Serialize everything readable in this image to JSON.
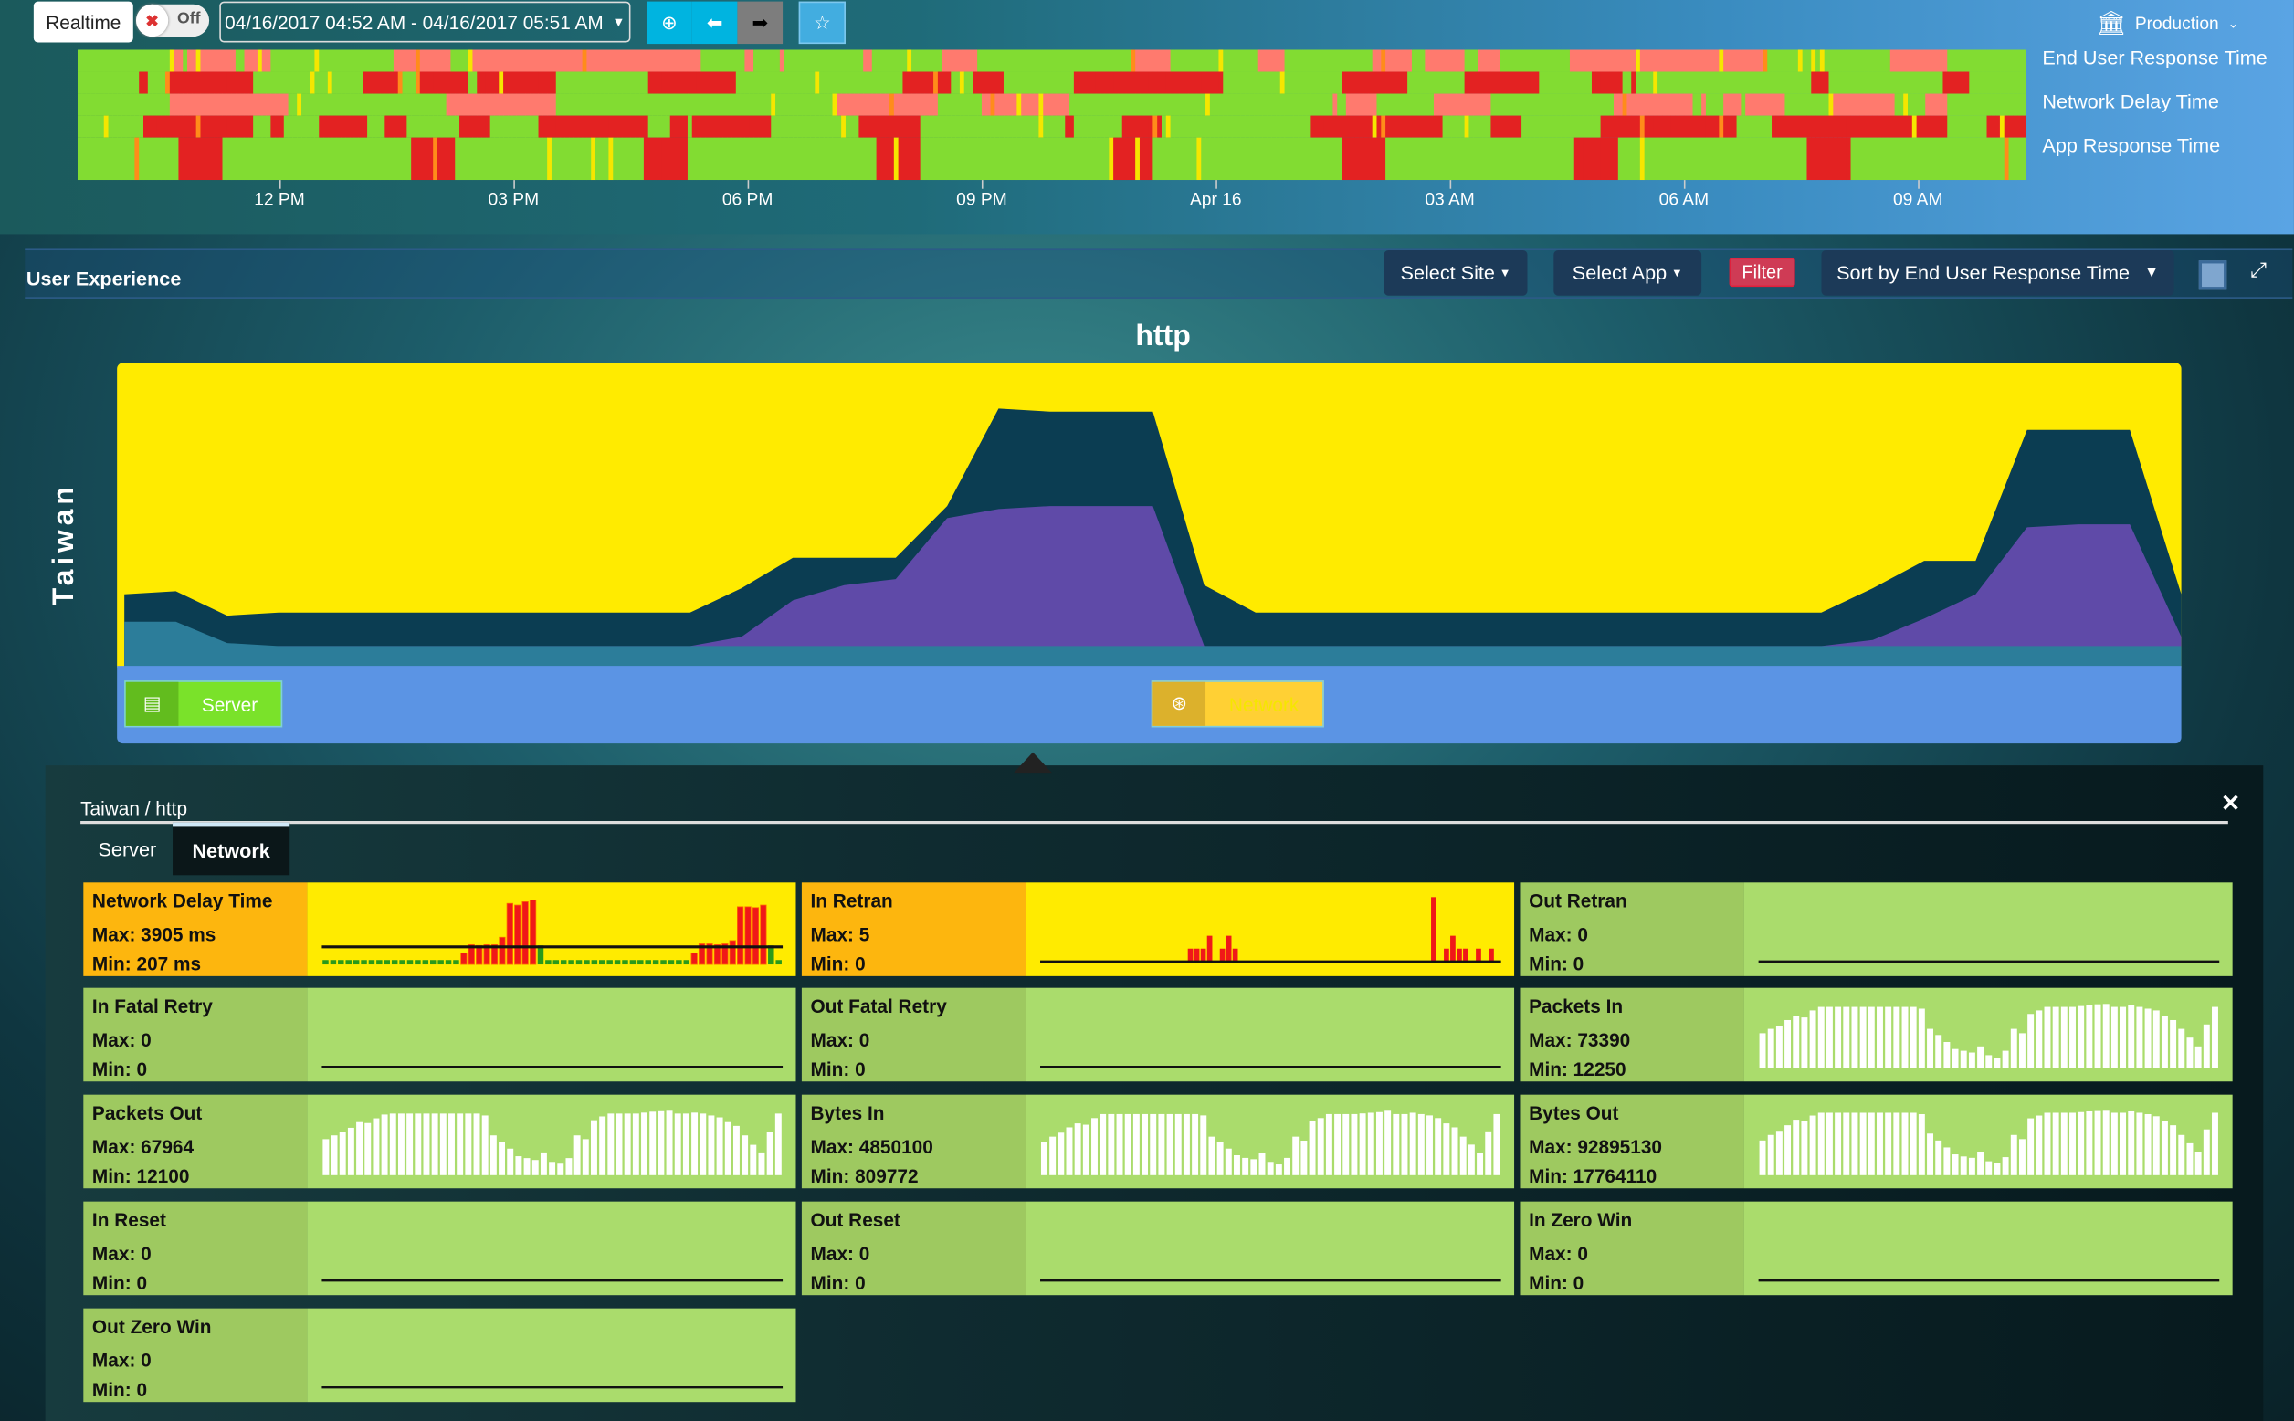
{
  "toolbar": {
    "realtime_label": "Realtime",
    "toggle_state": "Off",
    "time_range": "04/16/2017 04:52 AM - 04/16/2017 05:51 AM"
  },
  "timeline": {
    "ticks": [
      "12 PM",
      "03 PM",
      "06 PM",
      "09 PM",
      "Apr 16",
      "03 AM",
      "06 AM",
      "09 AM"
    ],
    "rows": [
      "End User Response Time",
      "Network Delay Time",
      "App Response Time"
    ],
    "colors": {
      "good": "#82dc32",
      "warn": "#f5e600",
      "minor": "#ff7a6e",
      "critical": "#e32222",
      "orange": "#ff8c1a"
    }
  },
  "environment": {
    "label": "Production"
  },
  "user_experience": {
    "title": "User Experience",
    "select_site": "Select Site",
    "select_app": "Select App",
    "filter": "Filter",
    "sort": "Sort by End User Response Time",
    "site": "Taiwan",
    "app": "http",
    "tiers": [
      {
        "label": "Server",
        "color": "#7ae22a"
      },
      {
        "label": "Network",
        "color": "#ffd034"
      }
    ]
  },
  "chart_data": {
    "type": "area",
    "title": "http",
    "stacked": false,
    "background": "#ffeb00",
    "x": [
      0,
      1,
      2,
      3,
      4,
      5,
      6,
      7,
      8,
      9,
      10,
      11,
      12,
      13,
      14,
      15,
      16,
      17,
      18,
      19,
      20,
      21,
      22,
      23,
      24,
      25,
      26,
      27,
      28,
      29,
      30,
      31,
      32,
      33,
      34,
      35,
      36,
      37,
      38,
      39,
      40
    ],
    "series": [
      {
        "color": "#0b3d52",
        "values": [
          24,
          25,
          17,
          18,
          18,
          18,
          18,
          18,
          18,
          18,
          18,
          18,
          26,
          36,
          36,
          36,
          53,
          85,
          84,
          84,
          84,
          27,
          18,
          18,
          18,
          18,
          18,
          18,
          18,
          18,
          18,
          18,
          18,
          18,
          26,
          35,
          35,
          78,
          78,
          78,
          24
        ]
      },
      {
        "color": "#5f4aa8",
        "values": [
          7,
          7,
          6,
          7,
          7,
          7,
          7,
          7,
          7,
          7,
          7,
          7,
          10,
          22,
          27,
          29,
          49,
          52,
          53,
          53,
          53,
          7,
          7,
          7,
          7,
          7,
          7,
          7,
          7,
          7,
          7,
          7,
          7,
          7,
          9,
          16,
          24,
          46,
          47,
          47,
          10
        ]
      },
      {
        "color": "#2c7d9a",
        "values": [
          15,
          15,
          8,
          7,
          7,
          7,
          7,
          7,
          7,
          7,
          7,
          7,
          7,
          7,
          7,
          7,
          7,
          7,
          7,
          7,
          7,
          7,
          7,
          7,
          7,
          7,
          7,
          7,
          7,
          7,
          7,
          7,
          7,
          7,
          7,
          7,
          7,
          7,
          7,
          7,
          7
        ]
      }
    ]
  },
  "detail": {
    "breadcrumb": "Taiwan / http",
    "tabs": [
      "Server",
      "Network"
    ],
    "active_tab": "Network",
    "tiles": [
      {
        "name": "Network Delay Time",
        "max": "Max: 3905 ms",
        "min": "Min: 207 ms",
        "status": "warn",
        "kind": "delay",
        "values": [
          230,
          235,
          240,
          230,
          230,
          225,
          230,
          230,
          230,
          230,
          230,
          230,
          230,
          230,
          230,
          230,
          230,
          230,
          700,
          1200,
          1150,
          1200,
          1200,
          1650,
          3700,
          3600,
          3800,
          3905,
          300,
          220,
          220,
          220,
          220,
          220,
          220,
          220,
          220,
          220,
          220,
          220,
          220,
          220,
          220,
          220,
          220,
          220,
          220,
          220,
          700,
          1250,
          1250,
          1200,
          1250,
          1450,
          3500,
          3500,
          3450,
          3600,
          300,
          220
        ]
      },
      {
        "name": "In Retran",
        "max": "Max: 5",
        "min": "Min: 0",
        "status": "warn",
        "kind": "retran",
        "values": [
          0,
          0,
          0,
          0,
          0,
          0,
          0,
          0,
          0,
          0,
          0,
          0,
          0,
          0,
          0,
          0,
          0,
          0,
          0,
          0,
          0,
          0,
          0,
          1,
          1,
          1,
          2,
          0,
          1,
          2,
          1,
          0,
          0,
          0,
          0,
          0,
          0,
          0,
          0,
          0,
          0,
          0,
          0,
          0,
          0,
          0,
          0,
          0,
          0,
          0,
          0,
          0,
          0,
          0,
          0,
          0,
          0,
          0,
          0,
          0,
          0,
          5,
          0,
          1,
          2,
          1,
          1,
          0,
          1,
          0,
          1,
          0
        ]
      },
      {
        "name": "Out Retran",
        "max": "Max: 0",
        "min": "Min: 0",
        "status": "ok",
        "kind": "flat",
        "values": []
      },
      {
        "name": "In Fatal Retry",
        "max": "Max: 0",
        "min": "Min: 0",
        "status": "ok",
        "kind": "flat",
        "values": []
      },
      {
        "name": "Out Fatal Retry",
        "max": "Max: 0",
        "min": "Min: 0",
        "status": "ok",
        "kind": "flat",
        "values": []
      },
      {
        "name": "Packets In",
        "max": "Max: 73390",
        "min": "Min: 12250",
        "status": "ok",
        "kind": "bars",
        "values": [
          40000,
          45000,
          48000,
          55000,
          60000,
          58000,
          66000,
          70000,
          70000,
          70000,
          70000,
          70000,
          70000,
          70000,
          70000,
          70000,
          70000,
          70000,
          70000,
          68000,
          45000,
          38000,
          30000,
          22000,
          20000,
          18000,
          25000,
          15000,
          12250,
          20000,
          45000,
          40000,
          62000,
          66000,
          70000,
          70000,
          70000,
          70000,
          71000,
          72000,
          73000,
          73390,
          70000,
          70000,
          72000,
          70000,
          68000,
          66000,
          60000,
          55000,
          45000,
          35000,
          25000,
          50000,
          70000
        ]
      },
      {
        "name": "Packets Out",
        "max": "Max: 67964",
        "min": "Min: 12100",
        "status": "ok",
        "kind": "bars",
        "values": [
          38000,
          42000,
          46000,
          50000,
          56000,
          55000,
          60000,
          64000,
          65000,
          65000,
          65000,
          65000,
          65000,
          65000,
          65000,
          65000,
          65000,
          65000,
          65000,
          63000,
          42000,
          35000,
          28000,
          20000,
          18000,
          16000,
          24000,
          14000,
          12100,
          18000,
          42000,
          38000,
          58000,
          62000,
          65000,
          65000,
          65000,
          65000,
          66000,
          67000,
          67500,
          67964,
          65000,
          65000,
          66000,
          65000,
          63000,
          61000,
          56000,
          52000,
          42000,
          32000,
          24000,
          46000,
          65000
        ]
      },
      {
        "name": "Bytes In",
        "max": "Max: 4850100",
        "min": "Min: 809772",
        "status": "ok",
        "kind": "bars",
        "values": [
          2500000,
          2900000,
          3200000,
          3600000,
          3900000,
          3800000,
          4300000,
          4600000,
          4600000,
          4600000,
          4600000,
          4600000,
          4600000,
          4600000,
          4600000,
          4600000,
          4600000,
          4600000,
          4600000,
          4500000,
          2900000,
          2500000,
          2000000,
          1500000,
          1300000,
          1200000,
          1700000,
          1000000,
          809772,
          1300000,
          2900000,
          2600000,
          4100000,
          4300000,
          4600000,
          4600000,
          4600000,
          4600000,
          4650000,
          4700000,
          4750000,
          4850100,
          4600000,
          4600000,
          4700000,
          4600000,
          4500000,
          4300000,
          3900000,
          3600000,
          2900000,
          2300000,
          1700000,
          3300000,
          4600000
        ]
      },
      {
        "name": "Bytes Out",
        "max": "Max: 92895130",
        "min": "Min: 17764110",
        "status": "ok",
        "kind": "bars",
        "values": [
          50000000,
          58000000,
          64000000,
          72000000,
          80000000,
          78000000,
          86000000,
          90000000,
          90000000,
          90000000,
          90000000,
          90000000,
          90000000,
          90000000,
          90000000,
          90000000,
          90000000,
          90000000,
          90000000,
          88000000,
          60000000,
          50000000,
          40000000,
          30000000,
          27000000,
          25000000,
          34000000,
          20000000,
          17764110,
          26000000,
          58000000,
          52000000,
          82000000,
          86000000,
          90000000,
          90000000,
          90000000,
          90000000,
          91000000,
          92000000,
          92500000,
          92895130,
          90000000,
          90000000,
          92000000,
          90000000,
          88000000,
          85000000,
          78000000,
          72000000,
          58000000,
          46000000,
          34000000,
          66000000,
          90000000
        ]
      },
      {
        "name": "In Reset",
        "max": "Max: 0",
        "min": "Min: 0",
        "status": "ok",
        "kind": "flat",
        "values": []
      },
      {
        "name": "Out Reset",
        "max": "Max: 0",
        "min": "Min: 0",
        "status": "ok",
        "kind": "flat",
        "values": []
      },
      {
        "name": "In Zero Win",
        "max": "Max: 0",
        "min": "Min: 0",
        "status": "ok",
        "kind": "flat",
        "values": []
      },
      {
        "name": "Out Zero Win",
        "max": "Max: 0",
        "min": "Min: 0",
        "status": "ok",
        "kind": "flat",
        "values": []
      }
    ]
  }
}
